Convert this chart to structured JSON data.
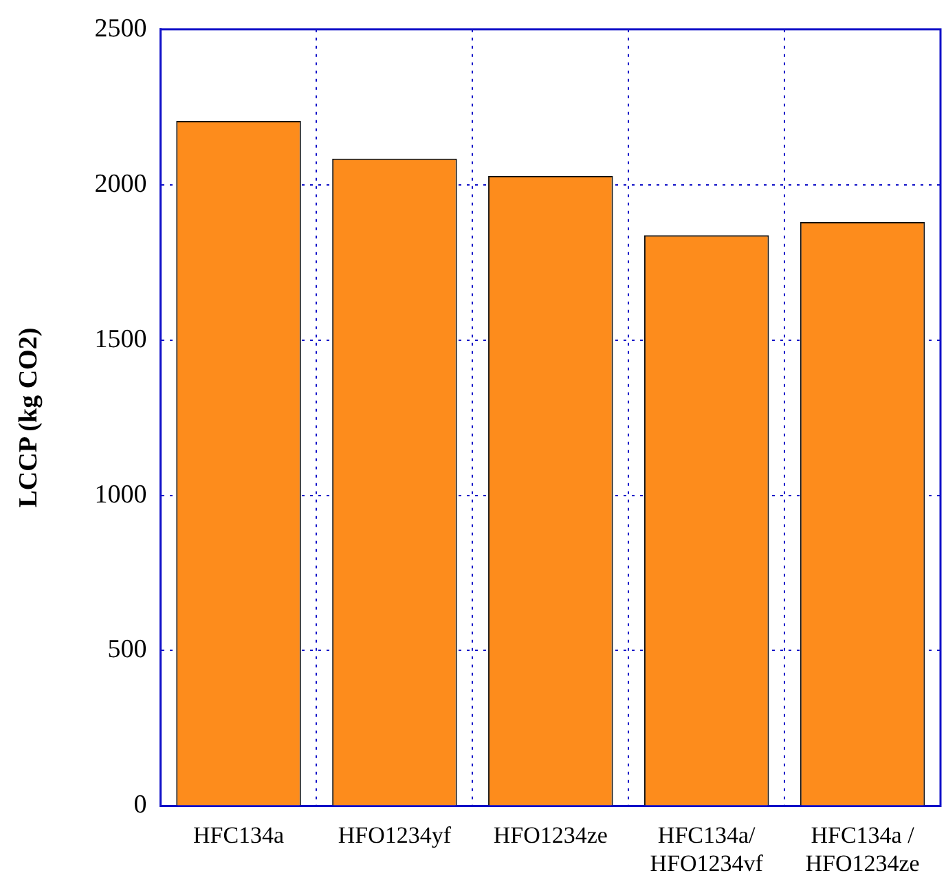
{
  "chart_data": {
    "type": "bar",
    "ylabel": "LCCP (kg CO2)",
    "categories": [
      "HFC134a",
      "HFO1234yf",
      "HFO1234ze",
      "HFC134a/\nHFO1234vf",
      "HFC134a /\nHFO1234ze"
    ],
    "values": [
      2205,
      2084,
      2028,
      1837,
      1880
    ],
    "color": "#fd8c1c",
    "ylim": [
      0,
      2500
    ],
    "yticks": [
      0,
      500,
      1000,
      1500,
      2000,
      2500
    ],
    "grid": true
  }
}
